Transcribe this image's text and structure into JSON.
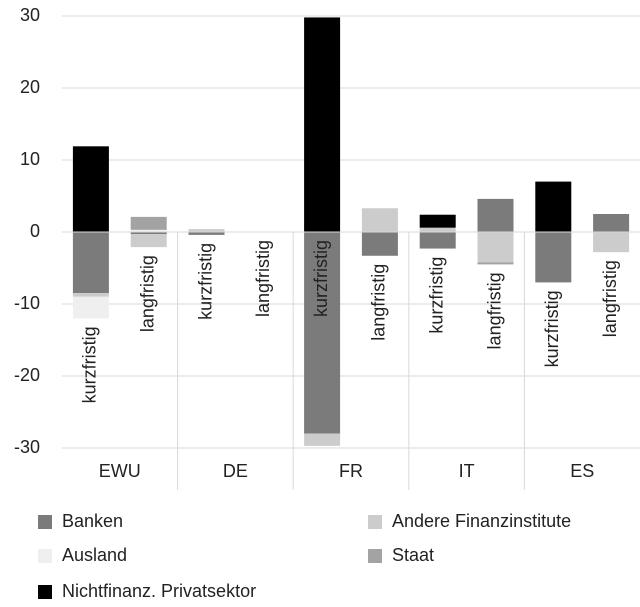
{
  "chart_data": {
    "type": "bar",
    "stacked": true,
    "groups": [
      "EWU",
      "DE",
      "FR",
      "IT",
      "ES"
    ],
    "categories": [
      "kurzfristig",
      "langfristig",
      "kurzfristig",
      "langfristig",
      "kurzfristig",
      "langfristig",
      "kurzfristig",
      "langfristig",
      "kurzfristig",
      "langfristig"
    ],
    "series": [
      {
        "name": "Banken",
        "color": "#7b7b7b",
        "values": [
          -8.5,
          -0.3,
          -0.4,
          0,
          -28,
          -3.3,
          -2.3,
          4.6,
          -7,
          2.5
        ]
      },
      {
        "name": "Andere Finanzinstitute",
        "color": "#cccccc",
        "values": [
          -0.5,
          -1.8,
          0.4,
          0,
          -1.7,
          3.3,
          0.6,
          -4.2,
          0,
          -2.8
        ]
      },
      {
        "name": "Ausland",
        "color": "#efefef",
        "values": [
          -3,
          0.3,
          0,
          0,
          0,
          0,
          0,
          0,
          0,
          0
        ]
      },
      {
        "name": "Staat",
        "color": "#a3a3a3",
        "values": [
          0,
          1.8,
          0,
          0,
          0,
          0,
          0,
          -0.3,
          0,
          0
        ]
      },
      {
        "name": "Nichtfinanz. Privatsektor",
        "color": "#000000",
        "values": [
          11.9,
          0,
          0,
          0,
          29.8,
          0,
          1.8,
          0,
          7,
          0
        ]
      }
    ],
    "ylim": [
      -30,
      30
    ],
    "yticks": [
      -30,
      -20,
      -10,
      0,
      10,
      20,
      30
    ],
    "grid": true
  }
}
